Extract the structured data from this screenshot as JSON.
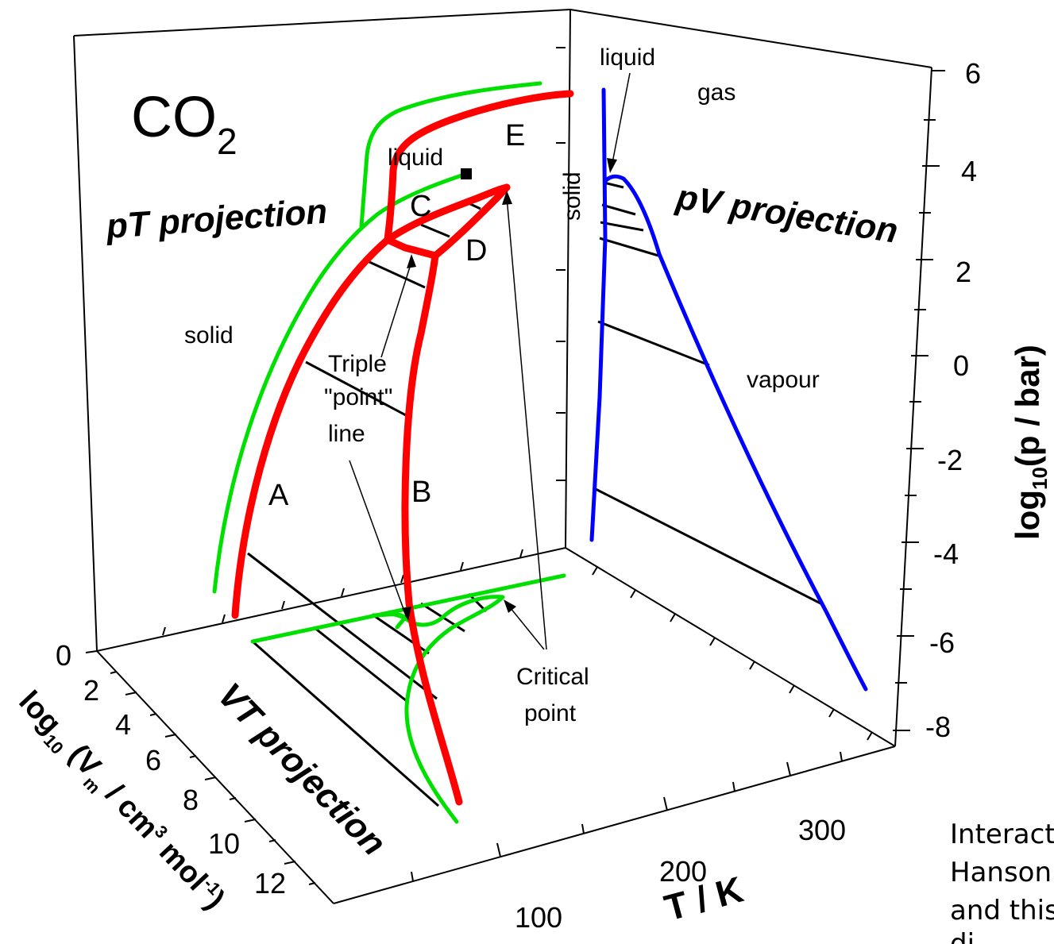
{
  "title": {
    "main": "CO",
    "sub": "2"
  },
  "projections": {
    "pT": "pT projection",
    "pV": "pV projection",
    "VT": "VT projection"
  },
  "region_labels": {
    "liquid_pT": "liquid",
    "solid_pT": "solid",
    "liquid_pV": "liquid",
    "gas": "gas",
    "solid_pV": "solid",
    "vapour": "vapour"
  },
  "curve_letters": [
    "A",
    "B",
    "C",
    "D",
    "E"
  ],
  "annotations": {
    "triple_line": [
      "Triple",
      "\"point\"",
      "line"
    ],
    "critical_point": [
      "Critical",
      "point"
    ]
  },
  "axes": {
    "p": {
      "label_main": "log",
      "label_sub": "10",
      "label_rest": "(p / bar)",
      "ticks": [
        "6",
        "4",
        "2",
        "0",
        "-2",
        "-4",
        "-6",
        "-8"
      ]
    },
    "V": {
      "label_main": "log",
      "label_sub": "10",
      "label_rest": " (V",
      "label_sub2": "m",
      "label_rest2": " / cm",
      "label_sup": "3",
      "label_rest3": " mol",
      "label_sup2": "-1",
      "label_end": ")",
      "ticks": [
        "0",
        "2",
        "4",
        "6",
        "8",
        "10",
        "12"
      ]
    },
    "T": {
      "label": "T / K",
      "ticks": [
        "100",
        "200",
        "300"
      ]
    }
  },
  "side_note": [
    "Interact",
    "Hanson",
    "and this",
    "di"
  ],
  "colors": {
    "solid_liquid": "#ff0000",
    "solid_boundary": "#00e000",
    "pV_curve": "#0000ff"
  }
}
